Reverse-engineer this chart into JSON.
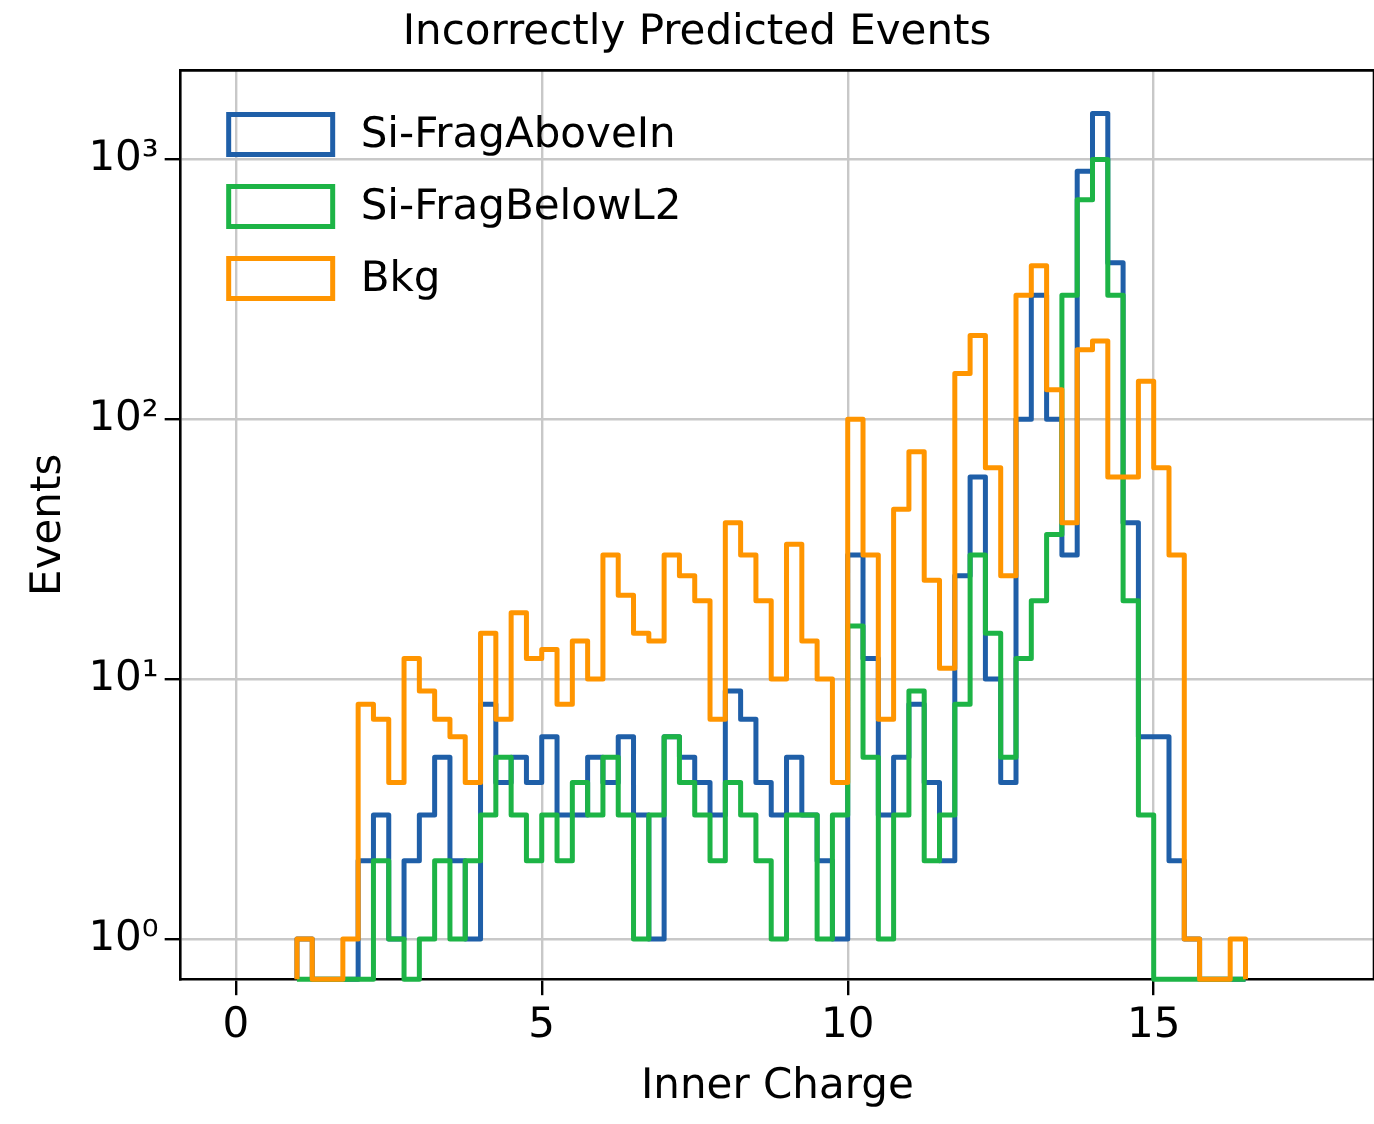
{
  "chart_data": {
    "type": "histogram",
    "title": "Incorrectly Predicted Events",
    "xlabel": "Inner Charge",
    "ylabel": "Events",
    "bins": [
      1.0,
      1.25,
      1.5,
      1.75,
      2.0,
      2.25,
      2.5,
      2.75,
      3.0,
      3.25,
      3.5,
      3.75,
      4.0,
      4.25,
      4.5,
      4.75,
      5.0,
      5.25,
      5.5,
      5.75,
      6.0,
      6.25,
      6.5,
      6.75,
      7.0,
      7.25,
      7.5,
      7.75,
      8.0,
      8.25,
      8.5,
      8.75,
      9.0,
      9.25,
      9.5,
      9.75,
      10.0,
      10.25,
      10.5,
      10.75,
      11.0,
      11.25,
      11.5,
      11.75,
      12.0,
      12.25,
      12.5,
      12.75,
      13.0,
      13.25,
      13.5,
      13.75,
      14.0,
      14.25,
      14.5,
      14.75,
      15.0,
      15.25,
      15.5,
      15.75,
      16.0,
      16.25,
      16.5
    ],
    "series": [
      {
        "name": "Si-FragAboveIn",
        "color": "#1f5fa8",
        "values": [
          1,
          null,
          null,
          null,
          2,
          3,
          1,
          2,
          3,
          5,
          2,
          1,
          8,
          4,
          5,
          4,
          6,
          3,
          3,
          5,
          4,
          6,
          3,
          1,
          6,
          5,
          4,
          3,
          9,
          7,
          4,
          3,
          5,
          3,
          2,
          1,
          30,
          12,
          3,
          5,
          8,
          4,
          2,
          25,
          60,
          10,
          4,
          100,
          300,
          100,
          30,
          900,
          1500,
          400,
          40,
          6,
          6,
          2,
          1,
          null,
          null,
          null
        ]
      },
      {
        "name": "Si-FragBelowL2",
        "color": "#1db446",
        "values": [
          null,
          null,
          null,
          null,
          null,
          2,
          1,
          null,
          1,
          2,
          1,
          2,
          3,
          5,
          3,
          2,
          3,
          2,
          4,
          3,
          5,
          3,
          1,
          3,
          6,
          4,
          3,
          2,
          4,
          3,
          2,
          1,
          3,
          3,
          1,
          3,
          16,
          5,
          1,
          3,
          9,
          2,
          3,
          8,
          30,
          15,
          5,
          12,
          20,
          36,
          300,
          700,
          1000,
          300,
          20,
          3,
          null,
          null,
          null,
          null,
          null,
          null
        ]
      },
      {
        "name": "Bkg",
        "color": "#ff9500",
        "values": [
          1,
          null,
          null,
          1,
          8,
          7,
          4,
          12,
          9,
          7,
          6,
          4,
          15,
          7,
          18,
          12,
          13,
          8,
          14,
          10,
          30,
          21,
          15,
          14,
          30,
          25,
          20,
          7,
          40,
          30,
          20,
          10,
          33,
          14,
          10,
          4,
          100,
          30,
          7,
          45,
          75,
          24,
          11,
          150,
          210,
          65,
          25,
          300,
          390,
          130,
          40,
          185,
          200,
          60,
          60,
          140,
          65,
          30,
          1,
          null,
          null,
          1
        ]
      }
    ],
    "xlim": [
      -0.9,
      18.6
    ],
    "xticks": [
      0,
      5,
      10,
      15
    ],
    "ylim": [
      0.7,
      2200
    ],
    "yticks": [
      {
        "value": 1,
        "label": "10⁰"
      },
      {
        "value": 10,
        "label": "10¹"
      },
      {
        "value": 100,
        "label": "10²"
      },
      {
        "value": 1000,
        "label": "10³"
      }
    ],
    "log": "y",
    "grid": true,
    "legend": "top left"
  }
}
